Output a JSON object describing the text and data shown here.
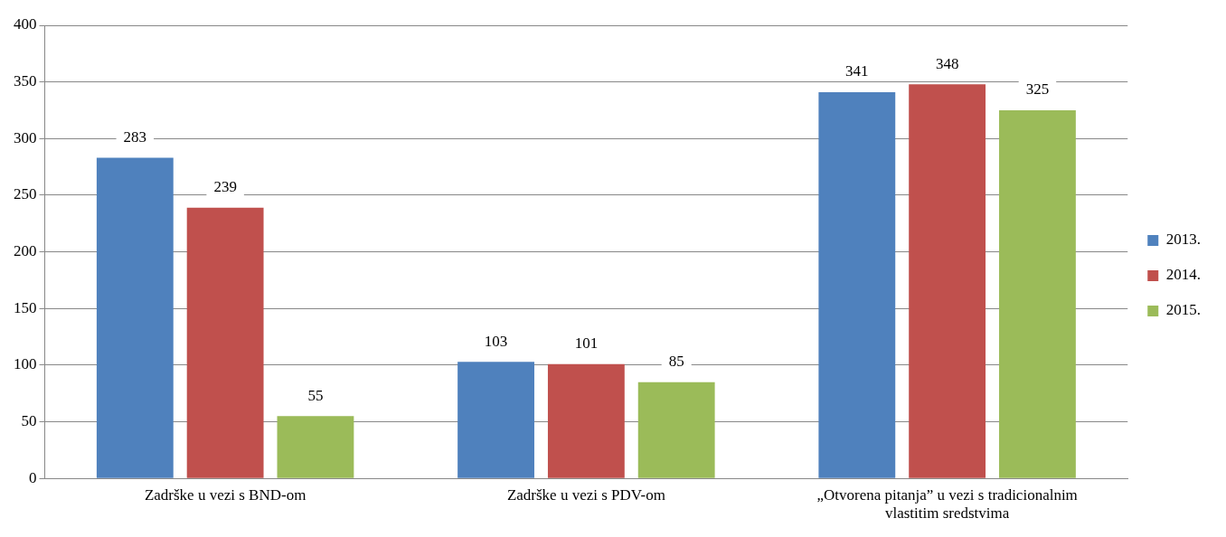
{
  "chart_data": {
    "type": "bar",
    "categories": [
      "Zadrške u vezi s BND-om",
      "Zadrške u vezi s PDV-om",
      "„Otvorena pitanja” u vezi s tradicionalnim vlastitim sredstvima"
    ],
    "series": [
      {
        "name": "2013.",
        "color": "#4f81bd",
        "values": [
          283,
          103,
          341
        ]
      },
      {
        "name": "2014.",
        "color": "#c0504d",
        "values": [
          239,
          101,
          348
        ]
      },
      {
        "name": "2015.",
        "color": "#9bbb59",
        "values": [
          55,
          85,
          325
        ]
      }
    ],
    "ylim": [
      0,
      400
    ],
    "yticks": [
      0,
      50,
      100,
      150,
      200,
      250,
      300,
      350,
      400
    ],
    "grid": "y",
    "legend": "right",
    "data_labels": true
  }
}
